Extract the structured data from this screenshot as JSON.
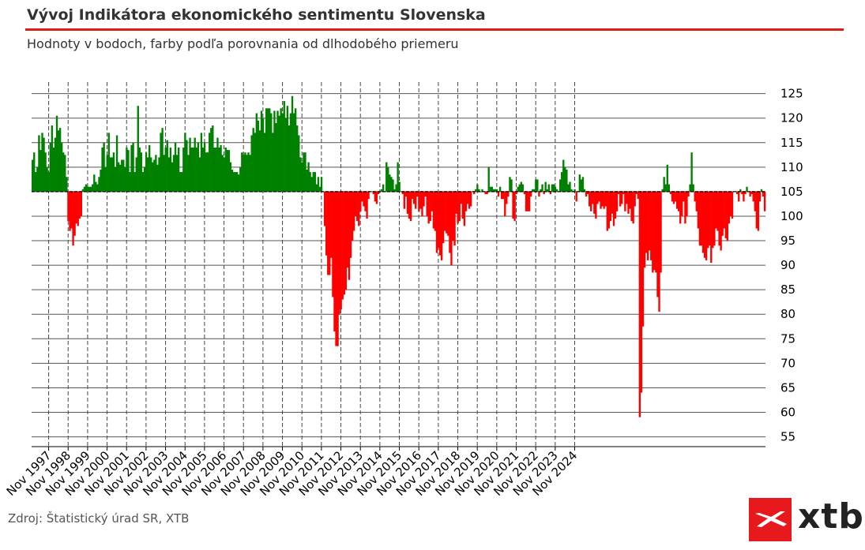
{
  "header": {
    "title": "Vývoj Indikátora ekonomického sentimentu Slovenska",
    "subtitle": "Hodnoty v bodoch, farby podľa porovnania od dlhodobého priemeru"
  },
  "footer": {
    "source": "Zdroj: Štatistický úrad SR, XTB",
    "logo_text": "xtb"
  },
  "colors": {
    "above": "#008000",
    "below": "#ff0000",
    "accent": "#d91e18"
  },
  "chart_data": {
    "type": "bar",
    "baseline": 105,
    "ylim": [
      53,
      128
    ],
    "yticks": [
      55,
      60,
      65,
      70,
      75,
      80,
      85,
      90,
      95,
      100,
      105,
      110,
      115,
      120,
      125
    ],
    "xtick_labels": [
      "Nov 1997",
      "Nov 1998",
      "Nov 1999",
      "Nov 2000",
      "Nov 2001",
      "Nov 2002",
      "Nov 2003",
      "Nov 2004",
      "Nov 2005",
      "Nov 2006",
      "Nov 2007",
      "Nov 2008",
      "Nov 2009",
      "Nov 2010",
      "Nov 2011",
      "Nov 2012",
      "Nov 2013",
      "Nov 2014",
      "Nov 2015",
      "Nov 2016",
      "Nov 2017",
      "Nov 2018",
      "Nov 2019",
      "Nov 2020",
      "Nov 2021",
      "Nov 2022",
      "Nov 2023",
      "Nov 2024"
    ],
    "grid": true,
    "x_start": "Jan 1997",
    "values": [
      111.5,
      113.0,
      109.0,
      110.0,
      116.5,
      113.5,
      117.0,
      116.0,
      113.0,
      110.0,
      109.0,
      115.0,
      118.5,
      114.0,
      116.0,
      120.5,
      117.5,
      118.0,
      115.0,
      113.0,
      112.5,
      108.0,
      99.0,
      97.0,
      97.5,
      94.0,
      96.0,
      98.5,
      98.0,
      99.5,
      100.0,
      105.5,
      106.0,
      106.5,
      106.0,
      106.0,
      106.0,
      106.5,
      108.5,
      107.0,
      106.5,
      108.0,
      109.5,
      114.0,
      115.0,
      110.0,
      112.5,
      117.0,
      112.0,
      112.0,
      113.0,
      110.0,
      116.5,
      111.0,
      110.5,
      111.5,
      111.5,
      110.0,
      114.0,
      113.5,
      109.0,
      114.5,
      115.0,
      109.0,
      112.0,
      122.5,
      114.0,
      113.0,
      109.0,
      110.0,
      113.0,
      112.0,
      114.5,
      112.0,
      111.0,
      111.5,
      112.5,
      110.5,
      112.0,
      117.0,
      118.0,
      112.5,
      114.0,
      115.5,
      112.0,
      114.0,
      111.0,
      112.5,
      115.0,
      112.5,
      114.0,
      109.0,
      109.0,
      114.0,
      117.0,
      115.5,
      112.5,
      116.0,
      114.0,
      114.0,
      116.0,
      114.0,
      115.0,
      112.0,
      117.0,
      114.0,
      115.0,
      113.0,
      113.0,
      117.0,
      118.0,
      118.5,
      114.0,
      114.0,
      116.0,
      114.0,
      114.5,
      112.5,
      112.0,
      114.0,
      113.5,
      113.5,
      111.0,
      109.5,
      109.0,
      109.0,
      109.0,
      108.5,
      110.0,
      113.0,
      112.5,
      113.0,
      112.5,
      113.0,
      112.5,
      116.5,
      118.0,
      117.0,
      121.0,
      119.5,
      117.5,
      121.5,
      120.0,
      117.0,
      122.0,
      122.0,
      122.0,
      121.0,
      117.0,
      121.5,
      119.0,
      121.5,
      120.5,
      122.0,
      121.0,
      123.5,
      120.0,
      122.5,
      118.5,
      121.0,
      124.5,
      121.0,
      122.0,
      118.5,
      116.5,
      112.0,
      111.0,
      113.0,
      113.0,
      109.5,
      111.0,
      109.0,
      108.0,
      109.0,
      109.0,
      106.5,
      108.0,
      106.0,
      108.0,
      105.0,
      98.0,
      92.0,
      88.0,
      88.0,
      91.5,
      83.5,
      76.5,
      73.5,
      73.5,
      80.0,
      81.0,
      83.0,
      84.0,
      85.0,
      89.5,
      87.0,
      91.5,
      95.0,
      97.0,
      100.0,
      99.0,
      98.0,
      101.0,
      103.0,
      102.0,
      101.0,
      99.5,
      103.5,
      105.0,
      105.0,
      104.5,
      103.0,
      102.5,
      104.5,
      105.0,
      105.5,
      106.5,
      105.0,
      111.0,
      110.0,
      108.5,
      108.0,
      107.5,
      105.5,
      106.5,
      111.0,
      107.0,
      105.0,
      104.5,
      101.5,
      104.0,
      100.5,
      99.5,
      99.0,
      103.5,
      102.5,
      101.5,
      104.0,
      101.0,
      101.5,
      100.0,
      102.0,
      104.0,
      100.0,
      98.5,
      99.0,
      101.0,
      97.5,
      97.0,
      92.5,
      93.5,
      92.0,
      91.0,
      94.5,
      97.0,
      96.5,
      96.0,
      92.5,
      90.0,
      95.0,
      94.0,
      100.5,
      98.5,
      99.0,
      102.5,
      99.5,
      98.0,
      101.0,
      102.5,
      101.5,
      102.0,
      105.0,
      104.5,
      105.5,
      106.5,
      105.5,
      105.0,
      105.5,
      105.0,
      104.5,
      104.5,
      110.0,
      106.0,
      106.0,
      105.5,
      105.5,
      105.5,
      104.0,
      106.0,
      103.5,
      103.5,
      100.0,
      102.5,
      104.0,
      108.0,
      107.5,
      99.5,
      99.0,
      104.5,
      106.0,
      106.5,
      107.0,
      106.5,
      104.5,
      101.0,
      101.0,
      101.0,
      104.0,
      105.5,
      105.5,
      107.5,
      107.5,
      104.0,
      105.5,
      106.5,
      104.5,
      107.0,
      105.5,
      106.5,
      104.5,
      106.5,
      106.5,
      106.0,
      105.5,
      105.0,
      107.5,
      109.0,
      111.5,
      110.0,
      109.5,
      106.5,
      107.0,
      105.5,
      105.0,
      105.5,
      103.0,
      105.0,
      108.5,
      107.5,
      108.0,
      105.5,
      104.0,
      104.5,
      102.0,
      101.0,
      102.5,
      100.5,
      99.5,
      102.5,
      103.0,
      101.5,
      102.0,
      101.5,
      102.0,
      97.0,
      97.5,
      99.0,
      100.5,
      98.0,
      99.5,
      101.0,
      104.5,
      102.0,
      102.5,
      104.5,
      101.0,
      102.5,
      100.5,
      101.5,
      99.0,
      98.5,
      102.0,
      104.5,
      103.5,
      59.0,
      64.0,
      77.5,
      89.5,
      92.5,
      91.0,
      93.0,
      91.0,
      88.5,
      89.0,
      88.5,
      83.5,
      80.5,
      88.5,
      105.5,
      108.0,
      106.5,
      110.5,
      106.5,
      104.5,
      103.0,
      102.5,
      103.0,
      101.5,
      101.0,
      98.5,
      100.0,
      103.0,
      98.5,
      100.0,
      104.0,
      106.5,
      113.0,
      106.5,
      103.0,
      101.0,
      97.5,
      94.0,
      94.0,
      92.5,
      91.5,
      91.0,
      93.5,
      94.0,
      90.5,
      93.5,
      94.0,
      97.5,
      97.0,
      94.0,
      93.0,
      96.0,
      97.5,
      95.5,
      95.0,
      98.5,
      100.0,
      99.5,
      105.0,
      105.0,
      104.5,
      103.0,
      105.5,
      104.5,
      103.0,
      104.5,
      106.0,
      105.0,
      104.0,
      104.5,
      103.0,
      101.0,
      97.5,
      97.0,
      103.0,
      105.5,
      104.0,
      101.0
    ]
  }
}
